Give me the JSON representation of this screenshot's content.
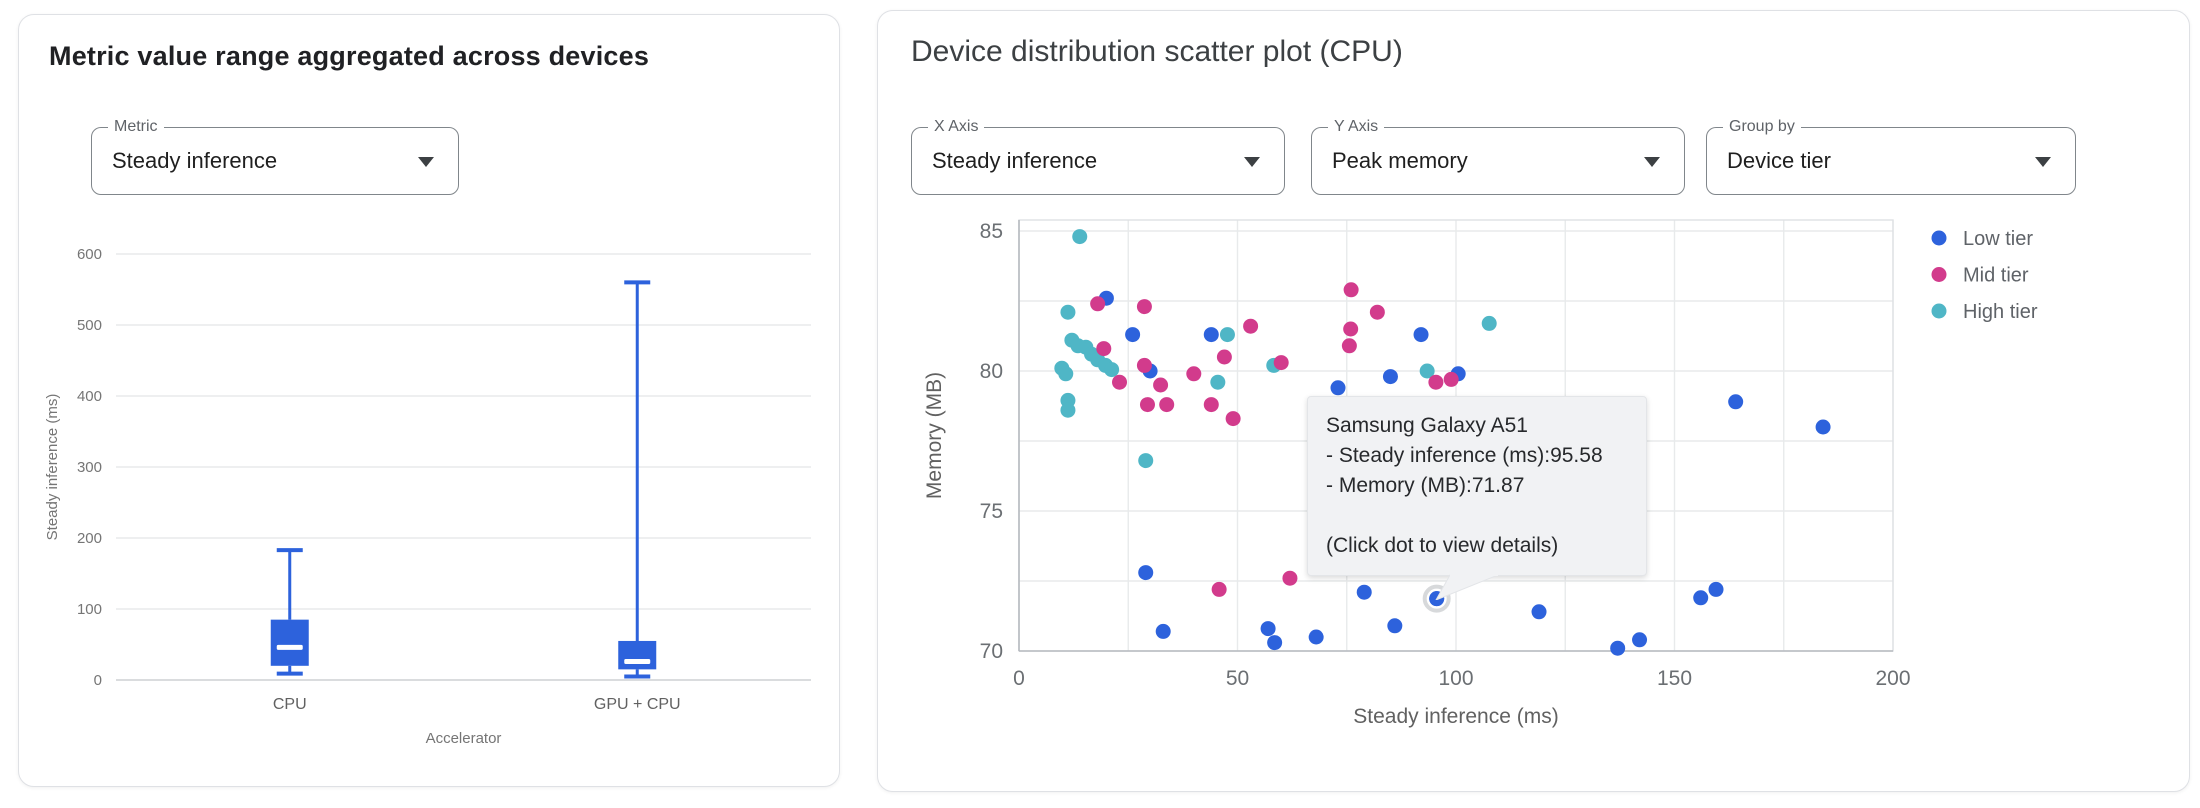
{
  "left_panel": {
    "title": "Metric value range aggregated across devices",
    "metric_select": {
      "label": "Metric",
      "value": "Steady inference"
    }
  },
  "right_panel": {
    "title": "Device distribution scatter plot (CPU)",
    "x_axis_select": {
      "label": "X Axis",
      "value": "Steady inference"
    },
    "y_axis_select": {
      "label": "Y Axis",
      "value": "Peak memory"
    },
    "group_by_select": {
      "label": "Group by",
      "value": "Device tier"
    },
    "tooltip": {
      "title": "Samsung Galaxy A51",
      "line1": "- Steady inference (ms):95.58",
      "line2": "- Memory (MB):71.87",
      "note": "(Click dot to view details)"
    }
  },
  "colors": {
    "box_blue": "#2d62dc",
    "low_tier": "#2d62dc",
    "mid_tier": "#d23b8c",
    "high_tier": "#4fb6c6",
    "gridline": "#e8eaeb",
    "axis_line": "#b6babf",
    "tick_text": "#6b6f73",
    "axis_title_text": "#757575",
    "tooltip_bg": "#f1f2f4"
  },
  "chart_data": [
    {
      "type": "box",
      "ylabel": "Steady inference (ms)",
      "xlabel": "Accelerator",
      "categories": [
        "CPU",
        "GPU + CPU"
      ],
      "series": [
        {
          "category": "CPU",
          "min": 9,
          "q1": 20,
          "median": 46,
          "q3": 85,
          "max": 183
        },
        {
          "category": "GPU + CPU",
          "min": 5,
          "q1": 15,
          "median": 26,
          "q3": 55,
          "max": 560
        }
      ],
      "ylim": [
        0,
        600
      ],
      "yticks": [
        0,
        100,
        200,
        300,
        400,
        500,
        600
      ],
      "grid": "horizontal"
    },
    {
      "type": "scatter",
      "xlabel": "Steady inference (ms)",
      "ylabel": "Memory (MB)",
      "xlim": [
        0,
        200
      ],
      "ylim": [
        70,
        85.4
      ],
      "xticks": [
        0,
        50,
        100,
        150,
        200
      ],
      "yticks": [
        70,
        75,
        80,
        85
      ],
      "x_grid_step": 25,
      "y_grid_step": 2.5,
      "legend_position": "right",
      "series": [
        {
          "name": "Low tier",
          "color": "#2d62dc",
          "points": [
            [
              20,
              82.6
            ],
            [
              26,
              81.3
            ],
            [
              30,
              80.0
            ],
            [
              44,
              81.3
            ],
            [
              73,
              79.4
            ],
            [
              85,
              79.8
            ],
            [
              92,
              81.3
            ],
            [
              100.5,
              79.9
            ],
            [
              164,
              78.9
            ],
            [
              184,
              78.0
            ],
            [
              29,
              72.8
            ],
            [
              33,
              70.7
            ],
            [
              57,
              70.8
            ],
            [
              58.5,
              70.3
            ],
            [
              68,
              70.5
            ],
            [
              79,
              72.1
            ],
            [
              86,
              70.9
            ],
            [
              95.58,
              71.87
            ],
            [
              119,
              71.4
            ],
            [
              137,
              70.1
            ],
            [
              142,
              70.4
            ],
            [
              156,
              71.9
            ],
            [
              159.5,
              72.2
            ]
          ]
        },
        {
          "name": "Mid tier",
          "color": "#d23b8c",
          "points": [
            [
              18,
              82.4
            ],
            [
              28.7,
              82.3
            ],
            [
              53,
              81.6
            ],
            [
              19.4,
              80.8
            ],
            [
              28.7,
              80.2
            ],
            [
              47,
              80.5
            ],
            [
              40,
              79.9
            ],
            [
              23,
              79.6
            ],
            [
              32.4,
              79.5
            ],
            [
              29.4,
              78.8
            ],
            [
              33.8,
              78.8
            ],
            [
              44,
              78.8
            ],
            [
              49,
              78.3
            ],
            [
              60,
              80.3
            ],
            [
              75.6,
              80.9
            ],
            [
              75.9,
              81.5
            ],
            [
              76,
              82.9
            ],
            [
              82,
              82.1
            ],
            [
              95.4,
              79.6
            ],
            [
              98.9,
              79.7
            ],
            [
              45.8,
              72.2
            ],
            [
              62,
              72.6
            ]
          ]
        },
        {
          "name": "High tier",
          "color": "#4fb6c6",
          "points": [
            [
              13.9,
              84.8
            ],
            [
              11.2,
              82.1
            ],
            [
              12.1,
              81.1
            ],
            [
              13.5,
              80.9
            ],
            [
              15.3,
              80.85
            ],
            [
              16.6,
              80.6
            ],
            [
              18,
              80.4
            ],
            [
              19.8,
              80.2
            ],
            [
              21.2,
              80.05
            ],
            [
              9.8,
              80.1
            ],
            [
              10.7,
              79.9
            ],
            [
              11.2,
              78.95
            ],
            [
              11.2,
              78.6
            ],
            [
              29,
              76.8
            ],
            [
              45.5,
              79.6
            ],
            [
              47.7,
              81.3
            ],
            [
              58.3,
              80.2
            ],
            [
              93.4,
              80.0
            ],
            [
              107.6,
              81.7
            ]
          ]
        }
      ],
      "highlight": {
        "series": "Low tier",
        "x": 95.58,
        "y": 71.87
      }
    }
  ]
}
